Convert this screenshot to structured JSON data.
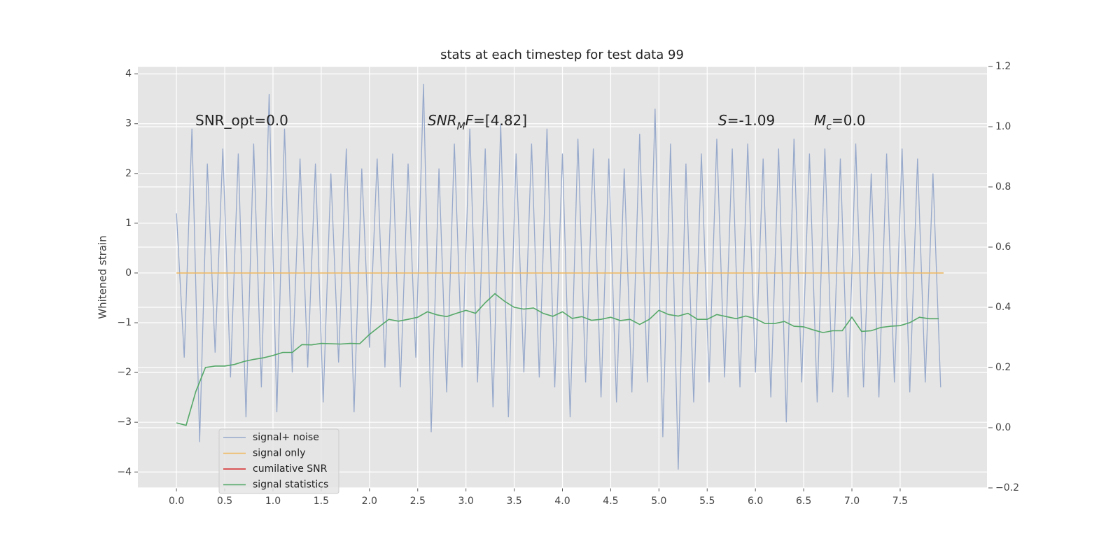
{
  "chart_data": {
    "type": "line",
    "title": "stats at each timestep for test data 99",
    "ylabel": "Whitened strain",
    "xlim": [
      -0.4,
      8.4
    ],
    "ylim": [
      -4.32,
      4.15
    ],
    "y2lim": [
      -0.2,
      1.2
    ],
    "xticks": [
      {
        "value": 0,
        "label": "0.0"
      },
      {
        "value": 0.5,
        "label": "0.5"
      },
      {
        "value": 1,
        "label": "1.0"
      },
      {
        "value": 1.5,
        "label": "1.5"
      },
      {
        "value": 2,
        "label": "2.0"
      },
      {
        "value": 2.5,
        "label": "2.5"
      },
      {
        "value": 3,
        "label": "3.0"
      },
      {
        "value": 3.5,
        "label": "3.5"
      },
      {
        "value": 4,
        "label": "4.0"
      },
      {
        "value": 4.5,
        "label": "4.5"
      },
      {
        "value": 5,
        "label": "5.0"
      },
      {
        "value": 5.5,
        "label": "5.5"
      },
      {
        "value": 6,
        "label": "6.0"
      },
      {
        "value": 6.5,
        "label": "6.5"
      },
      {
        "value": 7,
        "label": "7.0"
      },
      {
        "value": 7.5,
        "label": "7.5"
      }
    ],
    "yticks": [
      {
        "value": -4,
        "label": "−4"
      },
      {
        "value": -3,
        "label": "−3"
      },
      {
        "value": -2,
        "label": "−2"
      },
      {
        "value": -1,
        "label": "−1"
      },
      0,
      1,
      2,
      3,
      4
    ],
    "y2ticks": [
      {
        "value": -0.2,
        "label": "−0.2"
      },
      {
        "value": 0,
        "label": "0.0"
      },
      {
        "value": 0.2,
        "label": "0.2"
      },
      {
        "value": 0.4,
        "label": "0.4"
      },
      {
        "value": 0.6,
        "label": "0.6"
      },
      {
        "value": 0.8,
        "label": "0.8"
      },
      {
        "value": 1,
        "label": "1.0"
      },
      {
        "value": 1.2,
        "label": "1.2"
      }
    ],
    "grid": true,
    "legend": "lower left",
    "annotations": [
      [
        "SNR_opt=0.0"
      ],
      [
        "SNR",
        "M",
        "F=[4.82]"
      ],
      [
        "S",
        "=-1.09"
      ],
      [
        "M",
        "c",
        "=0.0"
      ]
    ],
    "series": [
      {
        "name": "signal+ noise",
        "color": "#97a9cb",
        "x": [
          0,
          0.08,
          0.16,
          0.24,
          0.32,
          0.4,
          0.48,
          0.56,
          0.64,
          0.72,
          0.8,
          0.88,
          0.96,
          1.04,
          1.12,
          1.2,
          1.28,
          1.36,
          1.44,
          1.52,
          1.6,
          1.68,
          1.76,
          1.84,
          1.92,
          2,
          2.08,
          2.16,
          2.24,
          2.32,
          2.4,
          2.48,
          2.56,
          2.64,
          2.72,
          2.8,
          2.88,
          2.96,
          3.04,
          3.12,
          3.2,
          3.28,
          3.36,
          3.44,
          3.52,
          3.6,
          3.68,
          3.76,
          3.84,
          3.92,
          4,
          4.08,
          4.16,
          4.24,
          4.32,
          4.4,
          4.48,
          4.56,
          4.64,
          4.72,
          4.8,
          4.88,
          4.96,
          5.04,
          5.12,
          5.2,
          5.28,
          5.36,
          5.44,
          5.52,
          5.6,
          5.68,
          5.76,
          5.84,
          5.92,
          6,
          6.08,
          6.16,
          6.24,
          6.32,
          6.4,
          6.48,
          6.56,
          6.64,
          6.72,
          6.8,
          6.88,
          6.96,
          7.04,
          7.12,
          7.2,
          7.28,
          7.36,
          7.44,
          7.52,
          7.6,
          7.68,
          7.76,
          7.84,
          7.92
        ],
        "values": [
          1.2,
          -1.7,
          2.9,
          -3.4,
          2.2,
          -1.6,
          2.5,
          -2.1,
          2.4,
          -2.9,
          2.6,
          -2.3,
          3.6,
          -2.8,
          2.9,
          -2.0,
          2.3,
          -1.9,
          2.2,
          -2.6,
          2.0,
          -1.8,
          2.5,
          -2.8,
          2.1,
          -1.5,
          2.3,
          -1.9,
          2.4,
          -2.3,
          2.2,
          -1.7,
          3.8,
          -3.2,
          2.1,
          -2.4,
          2.6,
          -1.9,
          2.9,
          -2.2,
          2.5,
          -2.7,
          3.0,
          -2.9,
          2.4,
          -2.0,
          2.6,
          -2.1,
          2.9,
          -2.3,
          2.4,
          -2.9,
          2.7,
          -2.2,
          2.5,
          -2.5,
          2.3,
          -2.6,
          2.1,
          -2.4,
          2.8,
          -2.2,
          3.3,
          -3.3,
          2.6,
          -3.95,
          2.2,
          -2.6,
          2.4,
          -2.2,
          2.7,
          -2.1,
          2.5,
          -2.3,
          2.6,
          -2.0,
          2.3,
          -2.5,
          2.5,
          -3.0,
          2.7,
          -2.2,
          2.4,
          -2.6,
          2.5,
          -2.4,
          2.3,
          -2.5,
          2.6,
          -2.3,
          2.0,
          -2.5,
          2.4,
          -2.2,
          2.5,
          -2.4,
          2.3,
          -2.2,
          2.0,
          -2.3
        ]
      },
      {
        "name": "signal only",
        "color": "#f0b85e",
        "x": [
          0,
          7.95
        ],
        "values": [
          0,
          0
        ]
      },
      {
        "name": "cumilative SNR",
        "color": "#d62728",
        "x": [],
        "values": []
      },
      {
        "name": "signal statistics",
        "color": "#55a868",
        "axis": "y2",
        "x": [
          0,
          0.1,
          0.2,
          0.3,
          0.4,
          0.5,
          0.6,
          0.7,
          0.8,
          0.9,
          1,
          1.1,
          1.2,
          1.3,
          1.4,
          1.5,
          1.6,
          1.7,
          1.8,
          1.9,
          2,
          2.1,
          2.2,
          2.3,
          2.4,
          2.5,
          2.6,
          2.7,
          2.8,
          2.9,
          3,
          3.1,
          3.2,
          3.3,
          3.4,
          3.5,
          3.6,
          3.7,
          3.8,
          3.9,
          4,
          4.1,
          4.2,
          4.3,
          4.4,
          4.5,
          4.6,
          4.7,
          4.8,
          4.9,
          5,
          5.1,
          5.2,
          5.3,
          5.4,
          5.5,
          5.6,
          5.7,
          5.8,
          5.9,
          6,
          6.1,
          6.2,
          6.3,
          6.4,
          6.5,
          6.6,
          6.7,
          6.8,
          6.9,
          7,
          7.1,
          7.2,
          7.3,
          7.4,
          7.5,
          7.6,
          7.7,
          7.8,
          7.9
        ],
        "values": [
          0.016,
          0.008,
          0.12,
          0.2,
          0.205,
          0.205,
          0.21,
          0.22,
          0.227,
          0.232,
          0.24,
          0.25,
          0.25,
          0.276,
          0.275,
          0.28,
          0.279,
          0.278,
          0.28,
          0.279,
          0.31,
          0.335,
          0.36,
          0.354,
          0.36,
          0.367,
          0.385,
          0.375,
          0.369,
          0.38,
          0.39,
          0.38,
          0.415,
          0.445,
          0.42,
          0.4,
          0.394,
          0.398,
          0.38,
          0.37,
          0.385,
          0.363,
          0.369,
          0.357,
          0.36,
          0.367,
          0.356,
          0.36,
          0.343,
          0.36,
          0.39,
          0.376,
          0.371,
          0.38,
          0.36,
          0.36,
          0.376,
          0.369,
          0.362,
          0.371,
          0.362,
          0.346,
          0.346,
          0.353,
          0.337,
          0.335,
          0.325,
          0.316,
          0.322,
          0.322,
          0.367,
          0.32,
          0.322,
          0.333,
          0.337,
          0.339,
          0.349,
          0.367,
          0.362,
          0.362
        ]
      }
    ]
  }
}
